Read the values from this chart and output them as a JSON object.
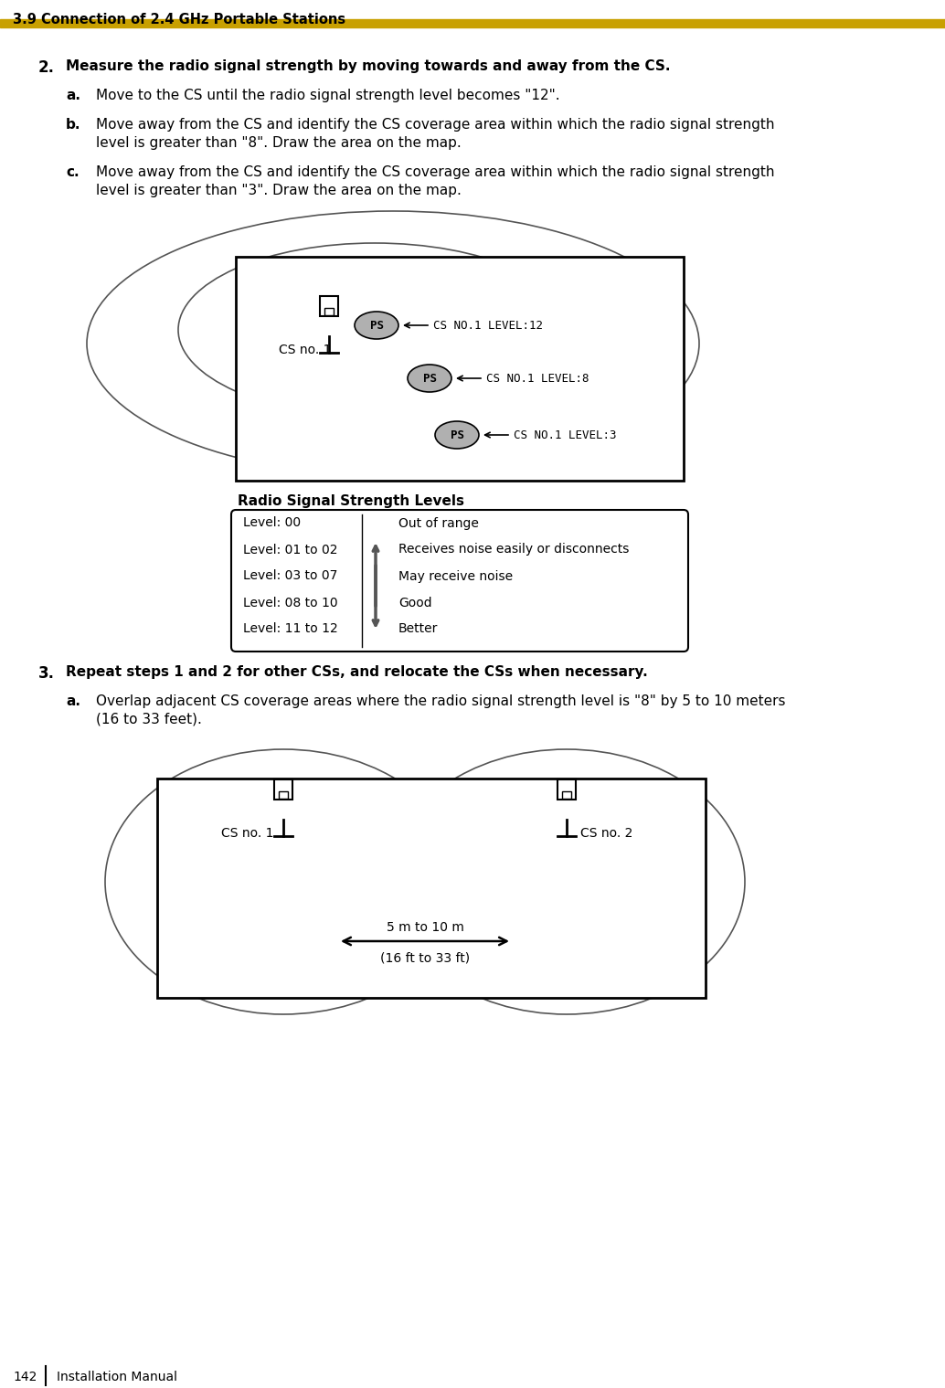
{
  "title": "3.9 Connection of 2.4 GHz Portable Stations",
  "page_num": "142",
  "page_label": "Installation Manual",
  "golden_bar_color": "#C8A000",
  "background_color": "#ffffff",
  "radio_table_title": "Radio Signal Strength Levels",
  "radio_table_rows": [
    {
      "level": "Level: 00",
      "desc": "Out of range"
    },
    {
      "level": "Level: 01 to 02",
      "desc": "Receives noise easily or disconnects"
    },
    {
      "level": "Level: 03 to 07",
      "desc": "May receive noise"
    },
    {
      "level": "Level: 08 to 10",
      "desc": "Good"
    },
    {
      "level": "Level: 11 to 12",
      "desc": "Better"
    }
  ],
  "text_color": "#000000",
  "header_fontsize": 11,
  "body_fontsize": 11,
  "sub_fontsize": 10,
  "mono_fontsize": 9
}
